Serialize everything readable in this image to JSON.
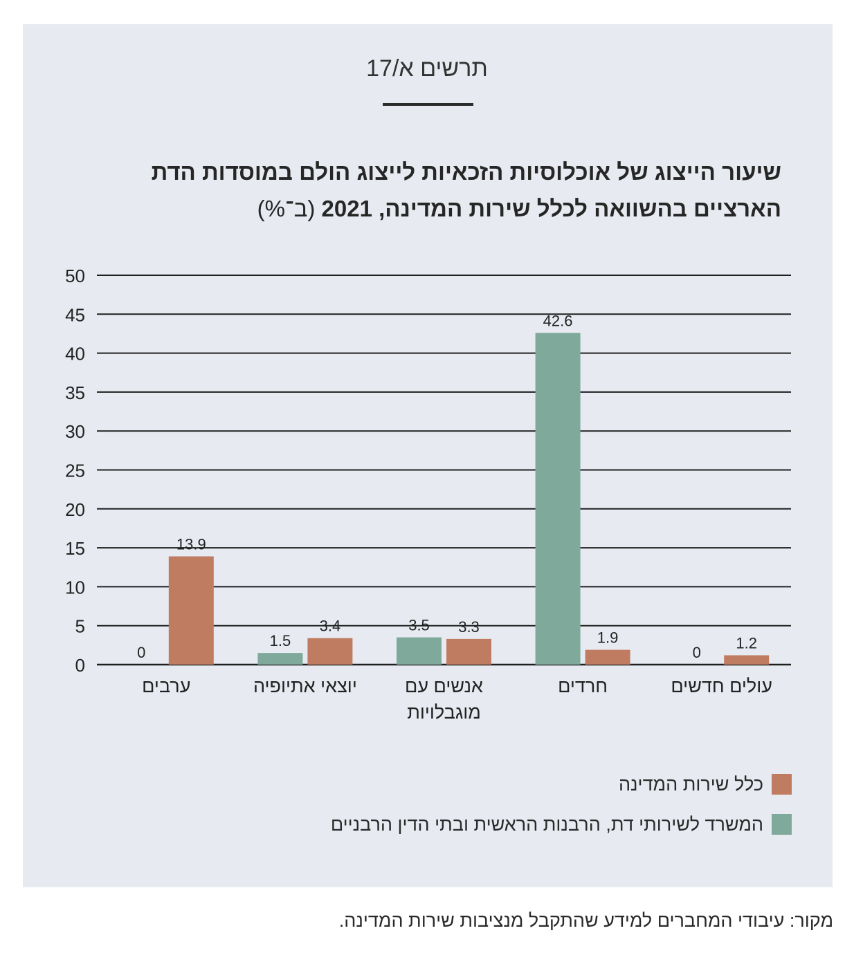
{
  "figure_label": "תרשים א/17",
  "title_line1": "שיעור הייצוג של אוכלוסיות הזכאיות לייצוג הולם במוסדות הדת",
  "title_line2": "הארציים בהשוואה לכלל שירות המדינה, 2021",
  "title_unit": "(ב־%)",
  "source": "מקור: עיבודי המחברים למידע שהתקבל מנציבות שירות המדינה.",
  "chart_data": {
    "type": "bar",
    "categories": [
      "ערבים",
      "יוצאי אתיופיה",
      "אנשים עם מוגבלויות",
      "חרדים",
      "עולים חדשים"
    ],
    "category_lines": [
      [
        "ערבים"
      ],
      [
        "יוצאי אתיופיה"
      ],
      [
        "אנשים עם",
        "מוגבלויות"
      ],
      [
        "חרדים"
      ],
      [
        "עולים חדשים"
      ]
    ],
    "series": [
      {
        "name": "המשרד לשירותי דת, הרבנות הראשית ובתי הדין הרבניים",
        "color": "#7fa99b",
        "values": [
          0,
          1.5,
          3.5,
          42.6,
          0
        ]
      },
      {
        "name": "כלל שירות המדינה",
        "color": "#c07c61",
        "values": [
          13.9,
          3.4,
          3.3,
          1.9,
          1.2
        ]
      }
    ],
    "ylim": [
      0,
      50
    ],
    "yticks": [
      0,
      5,
      10,
      15,
      20,
      25,
      30,
      35,
      40,
      45,
      50
    ],
    "grid": true,
    "legend": "bottom-right"
  }
}
